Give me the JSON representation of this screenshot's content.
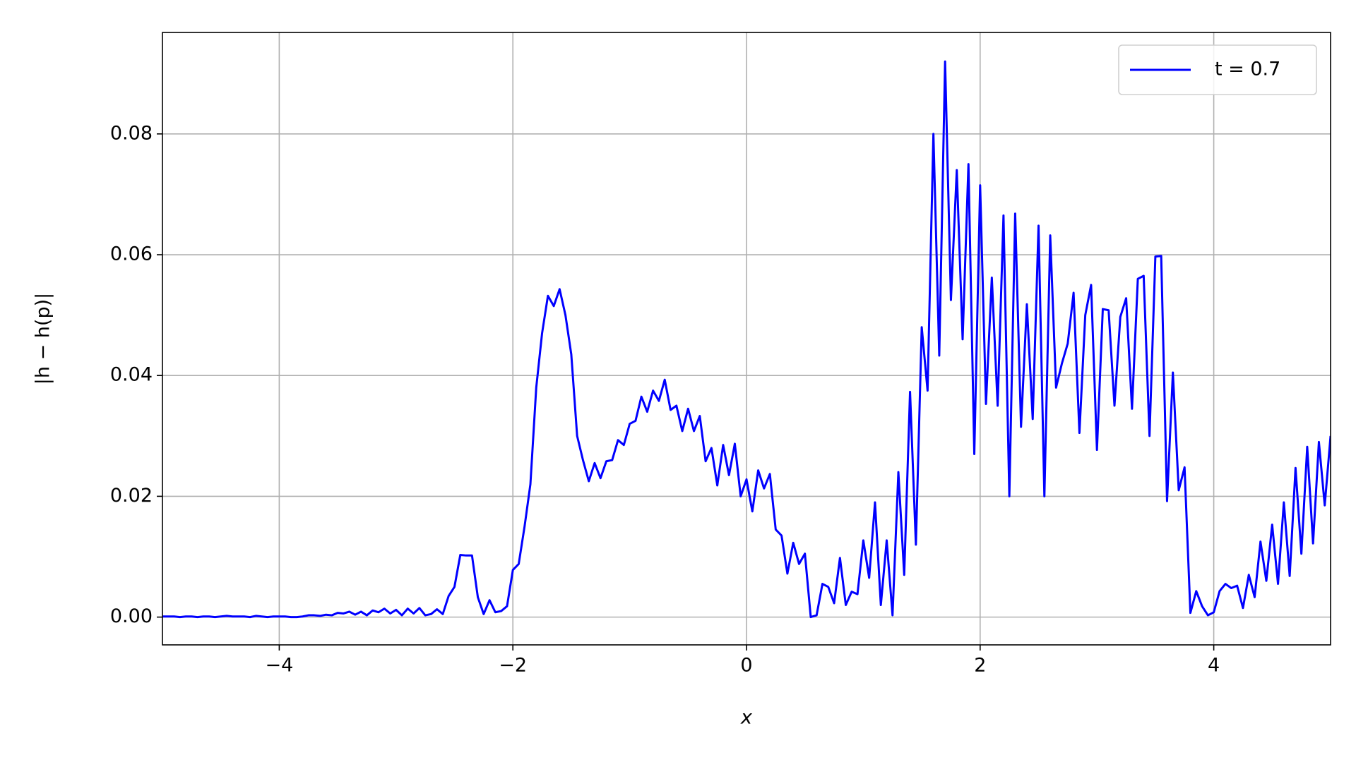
{
  "chart_data": {
    "type": "line",
    "xlabel": "x",
    "ylabel": "|h − h(p)|",
    "xlim": [
      -5,
      5
    ],
    "ylim": [
      -0.0046,
      0.0968
    ],
    "xticks": [
      {
        "value": -4,
        "label": "−4"
      },
      {
        "value": -2,
        "label": "−2"
      },
      0,
      2,
      4
    ],
    "yticks": [
      {
        "value": 0,
        "label": "0.00"
      },
      0.02,
      0.04,
      0.06,
      0.08
    ],
    "grid": true,
    "legend": "upper right",
    "x": [
      -5,
      -4.95,
      -4.9,
      -4.85,
      -4.8,
      -4.75,
      -4.7,
      -4.65,
      -4.6,
      -4.55,
      -4.5,
      -4.45,
      -4.4,
      -4.35,
      -4.3,
      -4.25,
      -4.2,
      -4.15,
      -4.1,
      -4.05,
      -4,
      -3.95,
      -3.9,
      -3.85,
      -3.8,
      -3.75,
      -3.7,
      -3.65,
      -3.6,
      -3.55,
      -3.5,
      -3.45,
      -3.4,
      -3.35,
      -3.3,
      -3.25,
      -3.2,
      -3.15,
      -3.1,
      -3.05,
      -3,
      -2.95,
      -2.9,
      -2.85,
      -2.8,
      -2.75,
      -2.7,
      -2.65,
      -2.6,
      -2.55,
      -2.5,
      -2.45,
      -2.4,
      -2.35,
      -2.3,
      -2.25,
      -2.2,
      -2.15,
      -2.1,
      -2.05,
      -2,
      -1.95,
      -1.9,
      -1.85,
      -1.8,
      -1.75,
      -1.7,
      -1.65,
      -1.6,
      -1.55,
      -1.5,
      -1.45,
      -1.4,
      -1.35,
      -1.3,
      -1.25,
      -1.2,
      -1.15,
      -1.1,
      -1.05,
      -1,
      -0.95,
      -0.9,
      -0.85,
      -0.8,
      -0.75,
      -0.7,
      -0.65,
      -0.6,
      -0.55,
      -0.5,
      -0.45,
      -0.4,
      -0.35,
      -0.3,
      -0.25,
      -0.2,
      -0.15,
      -0.1,
      -0.05,
      0,
      0.05,
      0.1,
      0.15,
      0.2,
      0.25,
      0.3,
      0.35,
      0.4,
      0.45,
      0.5,
      0.55,
      0.6,
      0.65,
      0.7,
      0.75,
      0.8,
      0.85,
      0.9,
      0.95,
      1,
      1.05,
      1.1,
      1.15,
      1.2,
      1.25,
      1.3,
      1.35,
      1.4,
      1.45,
      1.5,
      1.55,
      1.6,
      1.65,
      1.7,
      1.75,
      1.8,
      1.85,
      1.9,
      1.95,
      2,
      2.05,
      2.1,
      2.15,
      2.2,
      2.25,
      2.3,
      2.35,
      2.4,
      2.45,
      2.5,
      2.55,
      2.6,
      2.65,
      2.7,
      2.75,
      2.8,
      2.85,
      2.9,
      2.95,
      3,
      3.05,
      3.1,
      3.15,
      3.2,
      3.25,
      3.3,
      3.35,
      3.4,
      3.45,
      3.5,
      3.55,
      3.6,
      3.65,
      3.7,
      3.75,
      3.8,
      3.85,
      3.9,
      3.95,
      4,
      4.05,
      4.1,
      4.15,
      4.2,
      4.25,
      4.3,
      4.35,
      4.4,
      4.45,
      4.5,
      4.55,
      4.6,
      4.65,
      4.7,
      4.75,
      4.8,
      4.85,
      4.9,
      4.95,
      5
    ],
    "series": [
      {
        "name": "t = 0.7",
        "color": "#0000ff",
        "values": [
          0.0001,
          0.0001,
          0.0001,
          0,
          0.0001,
          0.0001,
          0,
          0.0001,
          0.0001,
          0,
          0.0001,
          0.0002,
          0.0001,
          0.0001,
          0.0001,
          0,
          0.0002,
          0.0001,
          0,
          0.0001,
          0.0001,
          0.0001,
          0,
          0,
          0.0001,
          0.0003,
          0.0003,
          0.0002,
          0.0004,
          0.0003,
          0.0007,
          0.0006,
          0.0009,
          0.0004,
          0.0009,
          0.0003,
          0.0011,
          0.0008,
          0.0014,
          0.0006,
          0.0012,
          0.0003,
          0.0014,
          0.0006,
          0.0015,
          0.0003,
          0.0005,
          0.0013,
          0.0005,
          0.0035,
          0.005,
          0.0103,
          0.0102,
          0.0102,
          0.0033,
          0.0005,
          0.0028,
          0.0008,
          0.001,
          0.0018,
          0.0078,
          0.0088,
          0.015,
          0.022,
          0.038,
          0.047,
          0.0532,
          0.0515,
          0.0543,
          0.05,
          0.0435,
          0.03,
          0.026,
          0.0225,
          0.0255,
          0.023,
          0.0258,
          0.026,
          0.0293,
          0.0285,
          0.032,
          0.0325,
          0.0365,
          0.034,
          0.0375,
          0.0358,
          0.0393,
          0.0343,
          0.035,
          0.0308,
          0.0345,
          0.0308,
          0.0333,
          0.0258,
          0.028,
          0.0218,
          0.0285,
          0.0235,
          0.0287,
          0.02,
          0.0228,
          0.0175,
          0.0243,
          0.0213,
          0.0237,
          0.0145,
          0.0135,
          0.0072,
          0.0123,
          0.0088,
          0.0105,
          0,
          0.0003,
          0.0055,
          0.005,
          0.0023,
          0.0098,
          0.002,
          0.0042,
          0.0038,
          0.0127,
          0.0065,
          0.019,
          0.002,
          0.0127,
          0.0003,
          0.024,
          0.007,
          0.0373,
          0.012,
          0.048,
          0.0375,
          0.08,
          0.0433,
          0.092,
          0.0525,
          0.074,
          0.046,
          0.075,
          0.027,
          0.0715,
          0.0353,
          0.0562,
          0.035,
          0.0665,
          0.02,
          0.0668,
          0.0315,
          0.0518,
          0.0328,
          0.0648,
          0.02,
          0.0632,
          0.038,
          0.042,
          0.0453,
          0.0537,
          0.0305,
          0.05,
          0.055,
          0.0277,
          0.051,
          0.0508,
          0.035,
          0.0497,
          0.0528,
          0.0345,
          0.056,
          0.0565,
          0.03,
          0.0597,
          0.0598,
          0.0192,
          0.0405,
          0.021,
          0.0248,
          0.0007,
          0.0043,
          0.0018,
          0.0003,
          0.0008,
          0.0043,
          0.0055,
          0.0048,
          0.0052,
          0.0015,
          0.007,
          0.0033,
          0.0125,
          0.006,
          0.0153,
          0.0055,
          0.019,
          0.0068,
          0.0247,
          0.0105,
          0.0282,
          0.0122,
          0.029,
          0.0185,
          0.03
        ]
      }
    ]
  }
}
